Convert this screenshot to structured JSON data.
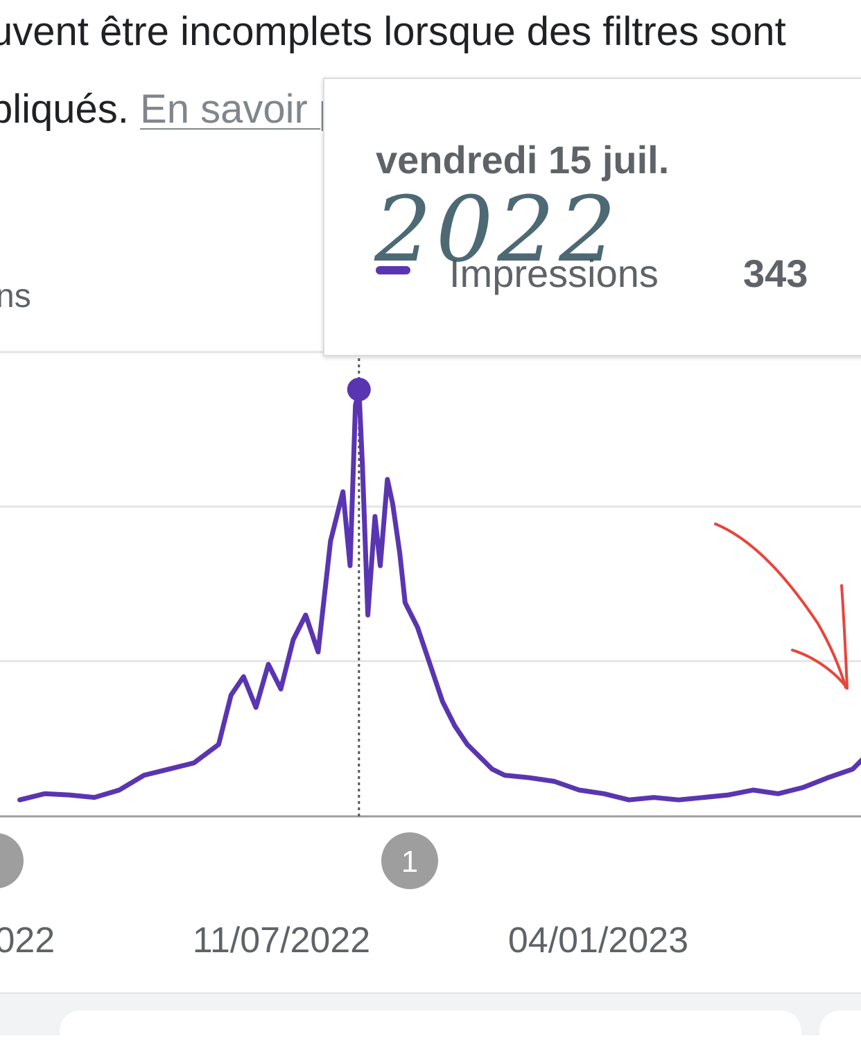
{
  "notice": {
    "line1": "uvent être incomplets lorsque des filtres sont",
    "line2_prefix": "pliqués. ",
    "learn_more": "En savoir plus"
  },
  "metric_label_cut": "ns",
  "tooltip": {
    "date": "vendredi 15 juil.",
    "metric": "Impressions",
    "value": "343",
    "handwritten_note": "2022"
  },
  "colors": {
    "series": "#5a35b1",
    "annotation_arrow": "#e8453c",
    "gridline": "#e4e4e4",
    "text": "#5f6368"
  },
  "chart_data": {
    "type": "line",
    "series": [
      {
        "name": "Impressions",
        "x": [
          "2022-01-05",
          "2022-01-19",
          "2022-02-02",
          "2022-02-16",
          "2022-03-02",
          "2022-03-16",
          "2022-03-30",
          "2022-04-13",
          "2022-04-27",
          "2022-05-04",
          "2022-05-11",
          "2022-05-18",
          "2022-05-25",
          "2022-06-01",
          "2022-06-08",
          "2022-06-15",
          "2022-06-22",
          "2022-06-29",
          "2022-07-06",
          "2022-07-10",
          "2022-07-13",
          "2022-07-15",
          "2022-07-17",
          "2022-07-20",
          "2022-07-24",
          "2022-07-27",
          "2022-07-31",
          "2022-08-03",
          "2022-08-07",
          "2022-08-10",
          "2022-08-17",
          "2022-08-24",
          "2022-08-31",
          "2022-09-07",
          "2022-09-14",
          "2022-09-21",
          "2022-09-28",
          "2022-10-05",
          "2022-10-19",
          "2022-11-02",
          "2022-11-16",
          "2022-11-30",
          "2022-12-14",
          "2022-12-28",
          "2023-01-11",
          "2023-01-25",
          "2023-02-08",
          "2023-02-22",
          "2023-03-08",
          "2023-03-22",
          "2023-04-05",
          "2023-04-19",
          "2023-04-26",
          "2023-05-03",
          "2023-05-10",
          "2023-05-17",
          "2023-05-24",
          "2023-05-31",
          "2023-06-03",
          "2023-06-07",
          "2023-06-10"
        ],
        "y": [
          10,
          15,
          14,
          12,
          18,
          30,
          35,
          40,
          55,
          95,
          110,
          85,
          120,
          100,
          140,
          160,
          130,
          220,
          260,
          200,
          330,
          343,
          280,
          160,
          240,
          200,
          270,
          250,
          210,
          170,
          150,
          120,
          90,
          70,
          55,
          45,
          35,
          30,
          28,
          25,
          18,
          15,
          10,
          12,
          10,
          12,
          14,
          18,
          15,
          20,
          28,
          35,
          45,
          60,
          50,
          65,
          75,
          95,
          70,
          100,
          90
        ]
      }
    ],
    "x_ticks": [
      ".022",
      "11/07/2022",
      "04/01/2023"
    ],
    "annotations": [
      {
        "label": "1"
      }
    ],
    "hover_date": "2022-07-15",
    "hover_value": 343,
    "ylim": [
      0,
      360
    ],
    "grid": true
  }
}
